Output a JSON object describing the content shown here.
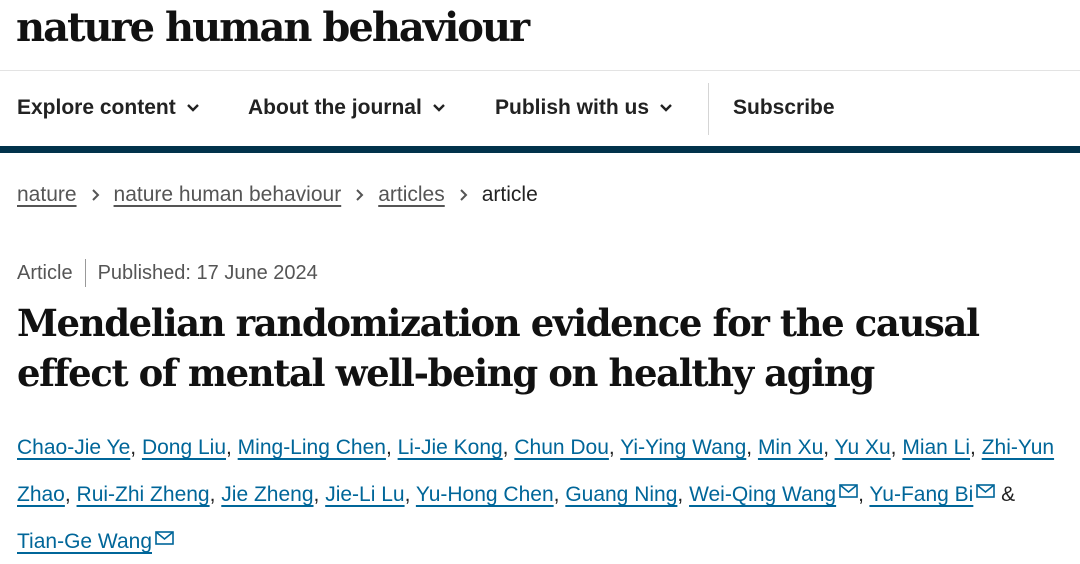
{
  "header": {
    "logo_text": "nature human behaviour"
  },
  "nav": {
    "items": [
      {
        "label": "Explore content",
        "icon": "chevron-down-icon"
      },
      {
        "label": "About the journal",
        "icon": "chevron-down-icon"
      },
      {
        "label": "Publish with us",
        "icon": "chevron-down-icon"
      }
    ],
    "subscribe_label": "Subscribe"
  },
  "breadcrumb": {
    "items": [
      "nature",
      "nature human behaviour",
      "articles"
    ],
    "current": "article"
  },
  "article": {
    "type": "Article",
    "published": "Published: 17 June 2024",
    "title": "Mendelian randomization evidence for the causal effect of mental well-being on healthy aging",
    "authors": [
      {
        "name": "Chao-Jie Ye",
        "sep": ", "
      },
      {
        "name": "Dong Liu",
        "sep": ", "
      },
      {
        "name": "Ming-Ling Chen",
        "sep": ", "
      },
      {
        "name": "Li-Jie Kong",
        "sep": ", "
      },
      {
        "name": "Chun Dou",
        "sep": ", "
      },
      {
        "name": "Yi-Ying Wang",
        "sep": ", "
      },
      {
        "name": "Min Xu",
        "sep": ", "
      },
      {
        "name": "Yu Xu",
        "sep": ", "
      },
      {
        "name": "Mian Li",
        "sep": ", "
      },
      {
        "name": "Zhi-Yun Zhao",
        "sep": ", "
      },
      {
        "name": "Rui-Zhi Zheng",
        "sep": ", "
      },
      {
        "name": "Jie Zheng",
        "sep": ", "
      },
      {
        "name": "Jie-Li Lu",
        "sep": ", "
      },
      {
        "name": "Yu-Hong Chen",
        "sep": ", "
      },
      {
        "name": "Guang Ning",
        "sep": ", "
      },
      {
        "name": "Wei-Qing Wang",
        "sep": ", ",
        "corresponding": true
      },
      {
        "name": "Yu-Fang Bi",
        "sep": " & ",
        "corresponding": true
      },
      {
        "name": "Tian-Ge Wang",
        "sep": "",
        "corresponding": true
      }
    ]
  }
}
